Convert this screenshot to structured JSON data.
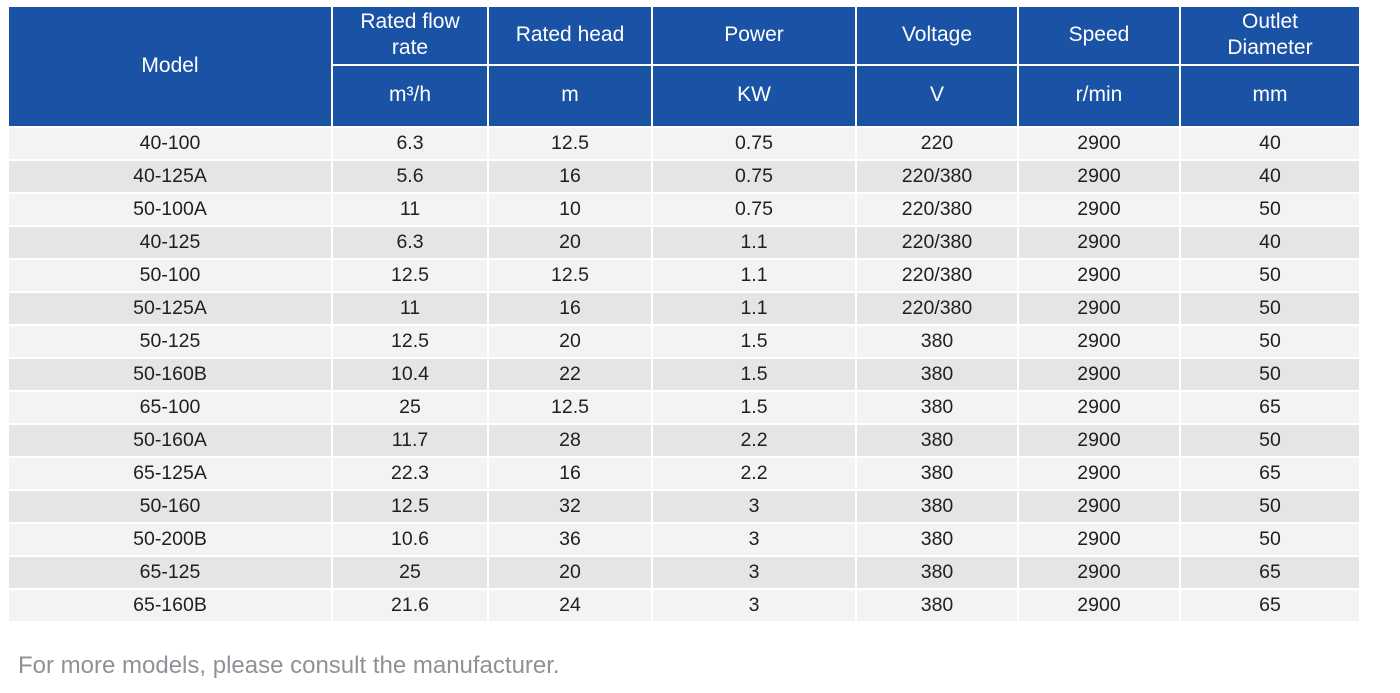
{
  "table": {
    "columns": [
      {
        "label": "Model",
        "unit": ""
      },
      {
        "label": "Rated flow rate",
        "unit": "m³/h"
      },
      {
        "label": "Rated head",
        "unit": "m"
      },
      {
        "label": "Power",
        "unit": "KW"
      },
      {
        "label": "Voltage",
        "unit": "V"
      },
      {
        "label": "Speed",
        "unit": "r/min"
      },
      {
        "label": "Outlet Diameter",
        "unit": "mm"
      }
    ],
    "rows": [
      [
        "40-100",
        "6.3",
        "12.5",
        "0.75",
        "220",
        "2900",
        "40"
      ],
      [
        "40-125A",
        "5.6",
        "16",
        "0.75",
        "220/380",
        "2900",
        "40"
      ],
      [
        "50-100A",
        "11",
        "10",
        "0.75",
        "220/380",
        "2900",
        "50"
      ],
      [
        "40-125",
        "6.3",
        "20",
        "1.1",
        "220/380",
        "2900",
        "40"
      ],
      [
        "50-100",
        "12.5",
        "12.5",
        "1.1",
        "220/380",
        "2900",
        "50"
      ],
      [
        "50-125A",
        "11",
        "16",
        "1.1",
        "220/380",
        "2900",
        "50"
      ],
      [
        "50-125",
        "12.5",
        "20",
        "1.5",
        "380",
        "2900",
        "50"
      ],
      [
        "50-160B",
        "10.4",
        "22",
        "1.5",
        "380",
        "2900",
        "50"
      ],
      [
        "65-100",
        "25",
        "12.5",
        "1.5",
        "380",
        "2900",
        "65"
      ],
      [
        "50-160A",
        "11.7",
        "28",
        "2.2",
        "380",
        "2900",
        "50"
      ],
      [
        "65-125A",
        "22.3",
        "16",
        "2.2",
        "380",
        "2900",
        "65"
      ],
      [
        "50-160",
        "12.5",
        "32",
        "3",
        "380",
        "2900",
        "50"
      ],
      [
        "50-200B",
        "10.6",
        "36",
        "3",
        "380",
        "2900",
        "50"
      ],
      [
        "65-125",
        "25",
        "20",
        "3",
        "380",
        "2900",
        "65"
      ],
      [
        "65-160B",
        "21.6",
        "24",
        "3",
        "380",
        "2900",
        "65"
      ]
    ]
  },
  "footer": {
    "note": "For more models, please consult the manufacturer."
  },
  "colors": {
    "header_bg": "#1a53a5",
    "header_text": "#ffffff",
    "row_odd": "#f2f4f2",
    "row_even": "#e3e6e3",
    "cell_text": "#1f1f1f",
    "note_text": "#8e9297"
  }
}
